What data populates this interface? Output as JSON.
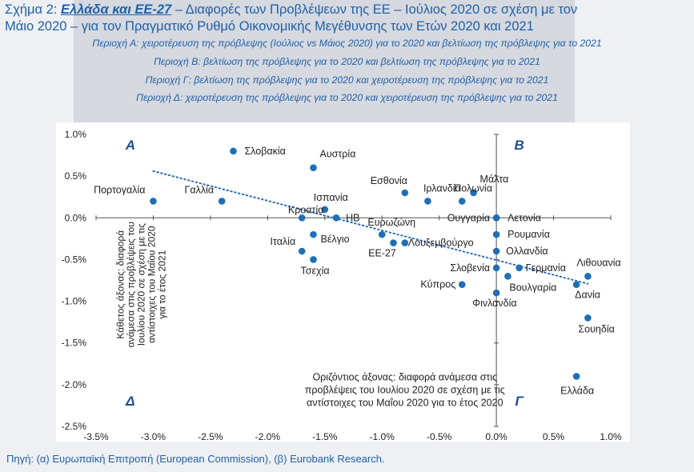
{
  "header": {
    "title_prefix": "Σχήμα 2: ",
    "title_bold": "Ελλάδα και ΕΕ-27",
    "title_rest": " – Διαφορές των Προβλέψεων της ΕΕ – Ιούλιος 2020 σε σχέση με τον",
    "title_line2": "Μάιο 2020 – για τον Πραγματικό Ρυθμό Οικονομικής Μεγέθυνσης των Ετών 2020 και 2021",
    "subtitles": [
      "Περιοχή Α: χειροτέρευση της πρόβλεψης (Ιούλιος vs Μάιος 2020) για το 2020 και βελτίωση της πρόβλεψης για το 2021",
      "Περιοχή Β: βελτίωση της πρόβλεψης για το 2020 και βελτίωση της πρόβλεψης για το 2021",
      "Περιοχή Γ: βελτίωση της πρόβλεψης για το 2020 και χειροτέρευση της πρόβλεψης για το 2021",
      "Περιοχή Δ: χειροτέρευση της πρόβλεψης για το 2020 και χειροτέρευση της πρόβλεψης για το 2021"
    ]
  },
  "footer": "Πηγή: (α) Ευρωπαϊκή Επιτροπή (European Commission), (β) Eurobank Research.",
  "colors": {
    "title": "#2060a8",
    "point": "#1f6fb6",
    "quadrant": "#1f4e8c",
    "trend": "#2e6db8"
  },
  "chart_data": {
    "type": "scatter",
    "x_tick_labels": [
      "-3.5%",
      "-3.0%",
      "-2.5%",
      "-2.0%",
      "-1.5%",
      "-1.0%",
      "-0.5%",
      "0.0%",
      "0.5%",
      "1.0%"
    ],
    "y_tick_labels": [
      "1.0%",
      "0.5%",
      "0.0%",
      "-0.5%",
      "-1.0%",
      "-1.5%",
      "-2.0%",
      "-2.5%"
    ],
    "xlim": [
      -3.5,
      1.0
    ],
    "ylim": [
      -2.5,
      1.0
    ],
    "xlabel": "Οριζόντιος άξονας: διαφορά ανάμεσα στις προβλέψεις του Ιουλίου 2020 σε σχέση με τις αντίστοιχες του Μαΐου 2020 για το έτος 2020",
    "xlabel_lines": [
      "Οριζόντιος άξονας: διαφορά ανάμεσα στις",
      "προβλέψεις του Ιουλίου 2020 σε σχέση με τις",
      "αντίστοιχες του Μαΐου 2020 για το έτος 2020"
    ],
    "ylabel": "Κάθετος άξονας: διαφορά ανάμεσα στις προβλέψεις του Ιουλίου 2020 σε σχέση με τις αντίστοιχες του Μαΐου 2020 για το έτος 2021",
    "ylabel_lines": [
      "Κάθετος άξονας: διαφορά",
      "ανάμεσα στις προβλέψεις του",
      "Ιουλίου 2020 σε σχέση με τις",
      "αντίστοιχες του Μαΐου 2020",
      "για το έτος 2021"
    ],
    "quadrant_labels": [
      "A",
      "B",
      "Γ",
      "Δ"
    ],
    "trendline": {
      "x": [
        -3.0,
        0.8
      ],
      "y": [
        0.56,
        -0.79
      ]
    },
    "points": [
      {
        "name": "Σλοβακία",
        "x": -2.3,
        "y": 0.8
      },
      {
        "name": "Αυστρία",
        "x": -1.6,
        "y": 0.6
      },
      {
        "name": "Πορτογαλία",
        "x": -3.0,
        "y": 0.2
      },
      {
        "name": "Γαλλία",
        "x": -2.4,
        "y": 0.2
      },
      {
        "name": "Ισπανία",
        "x": -1.5,
        "y": 0.1
      },
      {
        "name": "Κροατία",
        "x": -1.7,
        "y": 0.0
      },
      {
        "name": "ΗΒ",
        "x": -1.4,
        "y": 0.0
      },
      {
        "name": "Εσθονία",
        "x": -0.8,
        "y": 0.3
      },
      {
        "name": "Ιρλανδία",
        "x": -0.6,
        "y": 0.2
      },
      {
        "name": "Μάλτα",
        "x": -0.2,
        "y": 0.3
      },
      {
        "name": "Πολωνία",
        "x": -0.3,
        "y": 0.2
      },
      {
        "name": "Ουγγαρία",
        "x": 0.0,
        "y": 0.0
      },
      {
        "name": "Λετονία",
        "x": 0.0,
        "y": 0.0
      },
      {
        "name": "Ευρωζώνη",
        "x": -1.0,
        "y": -0.2
      },
      {
        "name": "Λουξεμβούργο",
        "x": -0.8,
        "y": -0.3
      },
      {
        "name": "ΕΕ-27",
        "x": -0.9,
        "y": -0.3
      },
      {
        "name": "Βέλγιο",
        "x": -1.6,
        "y": -0.2
      },
      {
        "name": "Ιταλία",
        "x": -1.7,
        "y": -0.4
      },
      {
        "name": "Τσεχία",
        "x": -1.6,
        "y": -0.5
      },
      {
        "name": "Ρουμανία",
        "x": 0.0,
        "y": -0.2
      },
      {
        "name": "Ολλανδία",
        "x": 0.0,
        "y": -0.4
      },
      {
        "name": "Σλοβενία",
        "x": 0.0,
        "y": -0.6
      },
      {
        "name": "Γερμανία",
        "x": 0.2,
        "y": -0.6
      },
      {
        "name": "Βουλγαρία",
        "x": 0.1,
        "y": -0.7
      },
      {
        "name": "Κύπρος",
        "x": -0.3,
        "y": -0.8
      },
      {
        "name": "Φινλανδία",
        "x": 0.0,
        "y": -0.9
      },
      {
        "name": "Λιθουανία",
        "x": 0.8,
        "y": -0.7
      },
      {
        "name": "Δανία",
        "x": 0.7,
        "y": -0.8
      },
      {
        "name": "Σουηδία",
        "x": 0.8,
        "y": -1.2
      },
      {
        "name": "Ελλάδα",
        "x": 0.7,
        "y": -1.9
      }
    ]
  }
}
